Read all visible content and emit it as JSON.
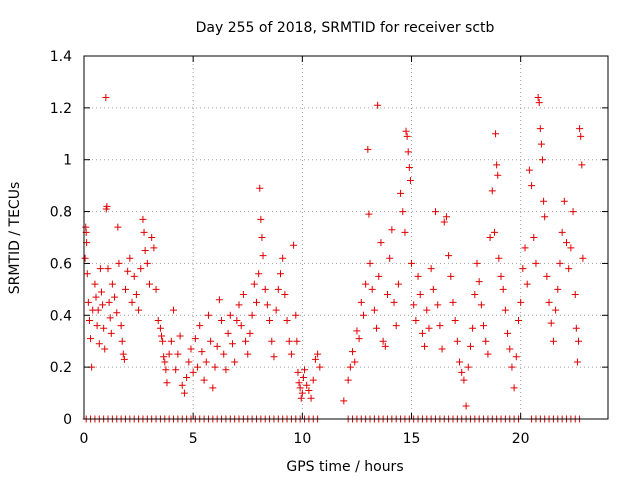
{
  "chart_data": {
    "type": "scatter",
    "title": "Day 255 of 2018, SRMTID for receiver sctb",
    "xlabel": "GPS time / hours",
    "ylabel": "SRMTID / TECUs",
    "xlim": [
      0,
      24
    ],
    "ylim": [
      0,
      1.4
    ],
    "xticks": [
      0,
      5,
      10,
      15,
      20
    ],
    "xtick_labels": [
      "0",
      "5",
      "10",
      "15",
      "20"
    ],
    "yticks": [
      0,
      0.2,
      0.4,
      0.6,
      0.8,
      1.0,
      1.2,
      1.4
    ],
    "ytick_labels": [
      "0",
      "0.2",
      "0.4",
      "0.6",
      "0.8",
      "1",
      "1.2",
      "1.4"
    ],
    "grid": true,
    "marker": "+",
    "color": "#e00000",
    "series": [
      {
        "name": "SRMTID",
        "points": [
          [
            0.05,
            0.62
          ],
          [
            0.08,
            0.74
          ],
          [
            0.1,
            0.72
          ],
          [
            0.12,
            0.68
          ],
          [
            0.15,
            0.56
          ],
          [
            0.2,
            0.45
          ],
          [
            0.25,
            0.38
          ],
          [
            0.3,
            0.31
          ],
          [
            0.35,
            0.2
          ],
          [
            0.4,
            0.42
          ],
          [
            0.5,
            0.52
          ],
          [
            0.55,
            0.47
          ],
          [
            0.6,
            0.36
          ],
          [
            0.65,
            0.42
          ],
          [
            0.7,
            0.29
          ],
          [
            0.75,
            0.58
          ],
          [
            0.8,
            0.49
          ],
          [
            0.85,
            0.44
          ],
          [
            0.9,
            0.35
          ],
          [
            0.95,
            0.27
          ],
          [
            1.0,
            1.24
          ],
          [
            1.02,
            0.81
          ],
          [
            1.05,
            0.82
          ],
          [
            1.1,
            0.58
          ],
          [
            1.15,
            0.45
          ],
          [
            1.2,
            0.39
          ],
          [
            1.25,
            0.33
          ],
          [
            1.3,
            0.52
          ],
          [
            1.4,
            0.47
          ],
          [
            1.5,
            0.41
          ],
          [
            1.55,
            0.74
          ],
          [
            1.6,
            0.6
          ],
          [
            1.7,
            0.36
          ],
          [
            1.75,
            0.3
          ],
          [
            1.8,
            0.25
          ],
          [
            1.85,
            0.23
          ],
          [
            1.9,
            0.5
          ],
          [
            2.0,
            0.57
          ],
          [
            2.1,
            0.62
          ],
          [
            2.2,
            0.45
          ],
          [
            2.3,
            0.55
          ],
          [
            2.4,
            0.48
          ],
          [
            2.5,
            0.42
          ],
          [
            2.6,
            0.58
          ],
          [
            2.7,
            0.77
          ],
          [
            2.75,
            0.72
          ],
          [
            2.8,
            0.65
          ],
          [
            2.9,
            0.6
          ],
          [
            3.0,
            0.52
          ],
          [
            3.1,
            0.7
          ],
          [
            3.2,
            0.66
          ],
          [
            3.3,
            0.5
          ],
          [
            3.4,
            0.38
          ],
          [
            3.5,
            0.35
          ],
          [
            3.55,
            0.32
          ],
          [
            3.6,
            0.3
          ],
          [
            3.65,
            0.24
          ],
          [
            3.7,
            0.22
          ],
          [
            3.75,
            0.19
          ],
          [
            3.8,
            0.14
          ],
          [
            3.9,
            0.25
          ],
          [
            4.0,
            0.3
          ],
          [
            4.1,
            0.42
          ],
          [
            4.2,
            0.19
          ],
          [
            4.3,
            0.25
          ],
          [
            4.4,
            0.32
          ],
          [
            4.5,
            0.13
          ],
          [
            4.6,
            0.1
          ],
          [
            4.7,
            0.16
          ],
          [
            4.8,
            0.22
          ],
          [
            4.9,
            0.27
          ],
          [
            5.0,
            0.18
          ],
          [
            5.1,
            0.31
          ],
          [
            5.2,
            0.2
          ],
          [
            5.3,
            0.36
          ],
          [
            5.4,
            0.26
          ],
          [
            5.5,
            0.15
          ],
          [
            5.6,
            0.22
          ],
          [
            5.7,
            0.4
          ],
          [
            5.8,
            0.3
          ],
          [
            5.9,
            0.12
          ],
          [
            6.0,
            0.2
          ],
          [
            6.1,
            0.28
          ],
          [
            6.2,
            0.46
          ],
          [
            6.3,
            0.38
          ],
          [
            6.4,
            0.25
          ],
          [
            6.5,
            0.19
          ],
          [
            6.6,
            0.33
          ],
          [
            6.7,
            0.4
          ],
          [
            6.8,
            0.29
          ],
          [
            6.9,
            0.22
          ],
          [
            7.0,
            0.38
          ],
          [
            7.1,
            0.44
          ],
          [
            7.2,
            0.36
          ],
          [
            7.3,
            0.48
          ],
          [
            7.4,
            0.3
          ],
          [
            7.5,
            0.25
          ],
          [
            7.6,
            0.33
          ],
          [
            7.7,
            0.4
          ],
          [
            7.8,
            0.52
          ],
          [
            7.9,
            0.45
          ],
          [
            8.0,
            0.56
          ],
          [
            8.05,
            0.89
          ],
          [
            8.1,
            0.77
          ],
          [
            8.15,
            0.7
          ],
          [
            8.2,
            0.63
          ],
          [
            8.3,
            0.5
          ],
          [
            8.4,
            0.44
          ],
          [
            8.5,
            0.38
          ],
          [
            8.6,
            0.3
          ],
          [
            8.7,
            0.24
          ],
          [
            8.8,
            0.42
          ],
          [
            8.9,
            0.5
          ],
          [
            9.0,
            0.56
          ],
          [
            9.1,
            0.62
          ],
          [
            9.2,
            0.48
          ],
          [
            9.3,
            0.38
          ],
          [
            9.4,
            0.3
          ],
          [
            9.5,
            0.25
          ],
          [
            9.6,
            0.67
          ],
          [
            9.7,
            0.4
          ],
          [
            9.75,
            0.3
          ],
          [
            9.8,
            0.18
          ],
          [
            9.85,
            0.14
          ],
          [
            9.9,
            0.12
          ],
          [
            9.95,
            0.08
          ],
          [
            10.0,
            0.1
          ],
          [
            10.05,
            0.16
          ],
          [
            10.1,
            0.19
          ],
          [
            10.2,
            0.13
          ],
          [
            10.3,
            0.11
          ],
          [
            10.4,
            0.08
          ],
          [
            10.5,
            0.15
          ],
          [
            10.6,
            0.23
          ],
          [
            10.7,
            0.25
          ],
          [
            10.8,
            0.2
          ],
          [
            11.9,
            0.07
          ],
          [
            12.1,
            0.15
          ],
          [
            12.2,
            0.2
          ],
          [
            12.3,
            0.26
          ],
          [
            12.4,
            0.22
          ],
          [
            12.5,
            0.34
          ],
          [
            12.6,
            0.31
          ],
          [
            12.7,
            0.45
          ],
          [
            12.8,
            0.4
          ],
          [
            12.9,
            0.52
          ],
          [
            13.0,
            1.04
          ],
          [
            13.05,
            0.79
          ],
          [
            13.1,
            0.6
          ],
          [
            13.2,
            0.5
          ],
          [
            13.3,
            0.42
          ],
          [
            13.4,
            0.35
          ],
          [
            13.45,
            1.21
          ],
          [
            13.5,
            0.55
          ],
          [
            13.6,
            0.68
          ],
          [
            13.7,
            0.3
          ],
          [
            13.8,
            0.28
          ],
          [
            13.9,
            0.48
          ],
          [
            14.0,
            0.62
          ],
          [
            14.1,
            0.73
          ],
          [
            14.2,
            0.45
          ],
          [
            14.3,
            0.36
          ],
          [
            14.4,
            0.52
          ],
          [
            14.5,
            0.87
          ],
          [
            14.6,
            0.8
          ],
          [
            14.7,
            0.72
          ],
          [
            14.75,
            1.11
          ],
          [
            14.8,
            1.09
          ],
          [
            14.85,
            1.03
          ],
          [
            14.9,
            0.97
          ],
          [
            14.95,
            0.92
          ],
          [
            15.0,
            0.6
          ],
          [
            15.1,
            0.44
          ],
          [
            15.2,
            0.38
          ],
          [
            15.3,
            0.55
          ],
          [
            15.4,
            0.48
          ],
          [
            15.5,
            0.33
          ],
          [
            15.6,
            0.28
          ],
          [
            15.7,
            0.42
          ],
          [
            15.8,
            0.35
          ],
          [
            15.9,
            0.58
          ],
          [
            16.0,
            0.5
          ],
          [
            16.1,
            0.8
          ],
          [
            16.2,
            0.44
          ],
          [
            16.3,
            0.36
          ],
          [
            16.4,
            0.27
          ],
          [
            16.5,
            0.76
          ],
          [
            16.6,
            0.78
          ],
          [
            16.7,
            0.63
          ],
          [
            16.8,
            0.55
          ],
          [
            16.9,
            0.45
          ],
          [
            17.0,
            0.38
          ],
          [
            17.1,
            0.3
          ],
          [
            17.2,
            0.22
          ],
          [
            17.3,
            0.18
          ],
          [
            17.4,
            0.15
          ],
          [
            17.5,
            0.05
          ],
          [
            17.6,
            0.2
          ],
          [
            17.7,
            0.28
          ],
          [
            17.8,
            0.35
          ],
          [
            17.9,
            0.48
          ],
          [
            18.0,
            0.6
          ],
          [
            18.1,
            0.53
          ],
          [
            18.2,
            0.44
          ],
          [
            18.3,
            0.36
          ],
          [
            18.4,
            0.3
          ],
          [
            18.5,
            0.25
          ],
          [
            18.6,
            0.7
          ],
          [
            18.7,
            0.88
          ],
          [
            18.8,
            0.72
          ],
          [
            18.85,
            1.1
          ],
          [
            18.9,
            0.98
          ],
          [
            18.95,
            0.94
          ],
          [
            19.0,
            0.62
          ],
          [
            19.1,
            0.55
          ],
          [
            19.2,
            0.5
          ],
          [
            19.3,
            0.42
          ],
          [
            19.4,
            0.33
          ],
          [
            19.5,
            0.27
          ],
          [
            19.6,
            0.2
          ],
          [
            19.7,
            0.12
          ],
          [
            19.8,
            0.24
          ],
          [
            19.9,
            0.38
          ],
          [
            20.0,
            0.45
          ],
          [
            20.1,
            0.58
          ],
          [
            20.2,
            0.66
          ],
          [
            20.3,
            0.52
          ],
          [
            20.4,
            0.96
          ],
          [
            20.5,
            0.9
          ],
          [
            20.6,
            0.7
          ],
          [
            20.7,
            0.6
          ],
          [
            20.8,
            1.24
          ],
          [
            20.85,
            1.22
          ],
          [
            20.9,
            1.12
          ],
          [
            20.95,
            1.06
          ],
          [
            21.0,
            1.0
          ],
          [
            21.05,
            0.84
          ],
          [
            21.1,
            0.78
          ],
          [
            21.2,
            0.55
          ],
          [
            21.3,
            0.45
          ],
          [
            21.4,
            0.37
          ],
          [
            21.5,
            0.3
          ],
          [
            21.6,
            0.42
          ],
          [
            21.7,
            0.5
          ],
          [
            21.8,
            0.6
          ],
          [
            21.9,
            0.72
          ],
          [
            22.0,
            0.84
          ],
          [
            22.1,
            0.68
          ],
          [
            22.2,
            0.58
          ],
          [
            22.3,
            0.66
          ],
          [
            22.4,
            0.8
          ],
          [
            22.5,
            0.48
          ],
          [
            22.55,
            0.35
          ],
          [
            22.6,
            0.22
          ],
          [
            22.65,
            0.3
          ],
          [
            22.7,
            1.12
          ],
          [
            22.75,
            1.09
          ],
          [
            22.8,
            0.98
          ],
          [
            22.85,
            0.62
          ]
        ]
      }
    ],
    "zero_points_x": [
      0.1,
      0.3,
      0.5,
      0.7,
      0.9,
      1.1,
      1.3,
      1.5,
      1.7,
      1.9,
      2.1,
      2.3,
      2.5,
      2.7,
      2.9,
      3.1,
      3.3,
      3.5,
      3.7,
      3.9,
      4.1,
      4.3,
      4.5,
      4.7,
      4.9,
      5.1,
      5.3,
      5.5,
      5.7,
      5.9,
      6.1,
      6.3,
      6.5,
      6.7,
      6.9,
      7.1,
      7.3,
      7.5,
      7.7,
      7.9,
      8.1,
      8.3,
      8.5,
      8.7,
      8.9,
      9.1,
      9.3,
      9.5,
      9.7,
      9.9,
      10.1,
      10.3,
      10.5,
      10.7,
      12.1,
      12.3,
      12.5,
      12.7,
      12.9,
      13.1,
      13.3,
      13.5,
      13.7,
      13.9,
      14.1,
      14.3,
      14.5,
      14.7,
      14.9,
      15.1,
      15.3,
      15.5,
      15.7,
      15.9,
      16.1,
      16.3,
      16.5,
      16.7,
      16.9,
      17.1,
      17.3,
      17.5,
      17.7,
      17.9,
      18.1,
      18.3,
      18.5,
      18.7,
      18.9,
      19.1,
      19.3,
      19.5,
      19.7,
      19.9,
      20.5,
      20.7,
      20.9,
      21.1,
      21.3,
      21.5,
      21.7,
      21.9,
      22.1,
      22.3,
      22.5,
      22.7
    ]
  }
}
